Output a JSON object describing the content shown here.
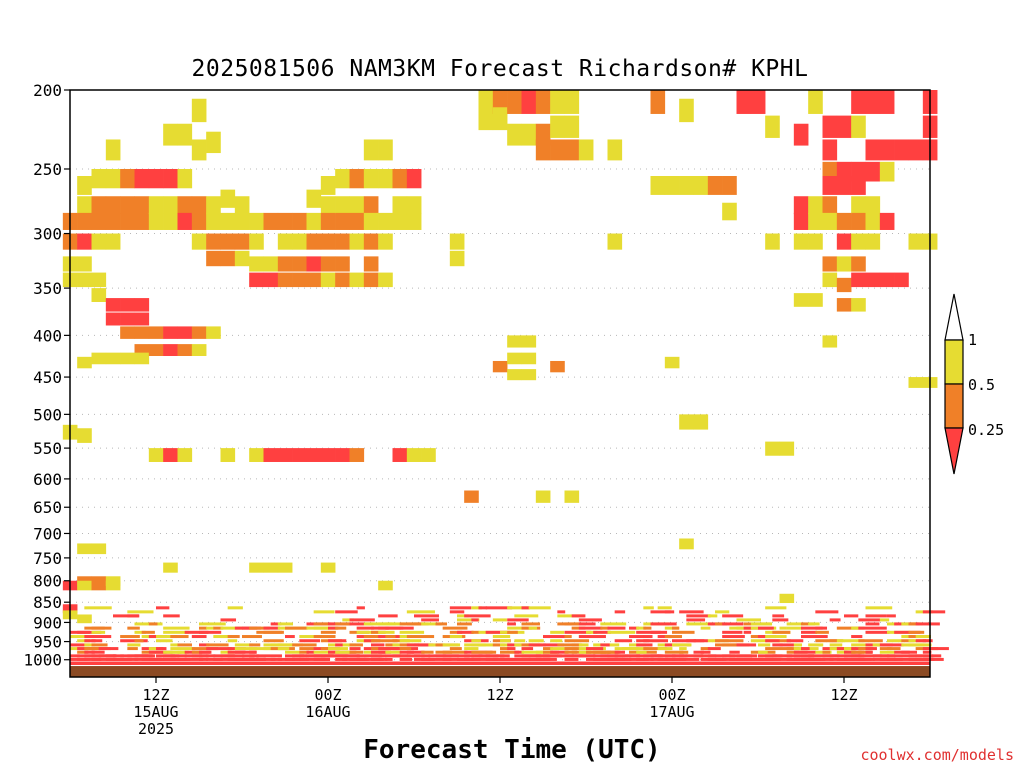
{
  "chart_data": {
    "type": "heatmap",
    "title": "2025081506 NAM3KM Forecast Richardson# KPHL",
    "xlabel": "Forecast Time (UTC)",
    "ylabel": "",
    "credit": "coolwx.com/models",
    "y_scale": "log-pressure, inverted (hPa)",
    "ylim": [
      1050,
      200
    ],
    "xlim_hours_from_init": [
      0,
      60
    ],
    "y_ticks": [
      200,
      250,
      300,
      350,
      400,
      450,
      500,
      550,
      600,
      650,
      700,
      750,
      800,
      850,
      900,
      950,
      1000
    ],
    "x_ticks": [
      {
        "hour": 6,
        "lines": [
          "12Z",
          "15AUG",
          "2025"
        ]
      },
      {
        "hour": 18,
        "lines": [
          "00Z",
          "16AUG"
        ]
      },
      {
        "hour": 30,
        "lines": [
          "12Z"
        ]
      },
      {
        "hour": 42,
        "lines": [
          "00Z",
          "17AUG"
        ]
      },
      {
        "hour": 54,
        "lines": [
          "12Z"
        ]
      }
    ],
    "grid": "dotted horizontal at pressure ticks",
    "colors": {
      "lt_0_25": "#ff4040",
      "0_25_to_0_5": "#f08028",
      "0_5_to_1": "#e6dc32",
      "ground": "#8b4a23"
    },
    "colorbar": {
      "labels": [
        "1",
        "0.5",
        "0.25"
      ]
    },
    "cells": [
      [
        0,
        283,
        2,
        2
      ],
      [
        0,
        300,
        2,
        2
      ],
      [
        0,
        320,
        2,
        3
      ],
      [
        0,
        335,
        2,
        3
      ],
      [
        0,
        515,
        2,
        3
      ],
      [
        0,
        800,
        2,
        1
      ],
      [
        0,
        855,
        2,
        1
      ],
      [
        0,
        870,
        2,
        3
      ],
      [
        1,
        255,
        3,
        3
      ],
      [
        1,
        270,
        3,
        3
      ],
      [
        1,
        283,
        3,
        2
      ],
      [
        1,
        300,
        3,
        1
      ],
      [
        1,
        320,
        3,
        3
      ],
      [
        1,
        335,
        3,
        3
      ],
      [
        1,
        425,
        3,
        3
      ],
      [
        1,
        520,
        3,
        3
      ],
      [
        1,
        720,
        3,
        3
      ],
      [
        1,
        790,
        3,
        2
      ],
      [
        1,
        800,
        3,
        3
      ],
      [
        1,
        880,
        3,
        3
      ],
      [
        2,
        250,
        3,
        3
      ],
      [
        2,
        270,
        3,
        2
      ],
      [
        2,
        283,
        3,
        2
      ],
      [
        2,
        300,
        3,
        3
      ],
      [
        2,
        335,
        3,
        3
      ],
      [
        2,
        350,
        3,
        3
      ],
      [
        2,
        420,
        3,
        3
      ],
      [
        2,
        720,
        3,
        3
      ],
      [
        2,
        790,
        3,
        2
      ],
      [
        2,
        800,
        3,
        2
      ],
      [
        3,
        230,
        3,
        3
      ],
      [
        3,
        250,
        3,
        3
      ],
      [
        3,
        270,
        3,
        2
      ],
      [
        3,
        283,
        3,
        2
      ],
      [
        3,
        300,
        3,
        3
      ],
      [
        3,
        360,
        3,
        1
      ],
      [
        3,
        375,
        3,
        1
      ],
      [
        3,
        420,
        3,
        3
      ],
      [
        3,
        790,
        3,
        3
      ],
      [
        3,
        800,
        3,
        3
      ],
      [
        4,
        250,
        3,
        2
      ],
      [
        4,
        270,
        3,
        2
      ],
      [
        4,
        283,
        3,
        2
      ],
      [
        4,
        360,
        3,
        1
      ],
      [
        4,
        375,
        3,
        1
      ],
      [
        4,
        390,
        3,
        2
      ],
      [
        4,
        420,
        3,
        3
      ],
      [
        5,
        250,
        3,
        1
      ],
      [
        5,
        270,
        3,
        2
      ],
      [
        5,
        283,
        3,
        2
      ],
      [
        5,
        360,
        3,
        1
      ],
      [
        5,
        375,
        3,
        1
      ],
      [
        5,
        390,
        3,
        2
      ],
      [
        5,
        410,
        3,
        2
      ],
      [
        5,
        420,
        3,
        3
      ],
      [
        6,
        250,
        3,
        1
      ],
      [
        6,
        270,
        3,
        3
      ],
      [
        6,
        283,
        3,
        3
      ],
      [
        6,
        390,
        3,
        2
      ],
      [
        6,
        410,
        3,
        2
      ],
      [
        6,
        550,
        3,
        3
      ],
      [
        7,
        220,
        3,
        3
      ],
      [
        7,
        250,
        3,
        1
      ],
      [
        7,
        270,
        3,
        3
      ],
      [
        7,
        283,
        3,
        3
      ],
      [
        7,
        390,
        3,
        1
      ],
      [
        7,
        410,
        3,
        1
      ],
      [
        7,
        550,
        3,
        1
      ],
      [
        7,
        760,
        3,
        3
      ],
      [
        8,
        220,
        3,
        3
      ],
      [
        8,
        250,
        3,
        3
      ],
      [
        8,
        270,
        3,
        2
      ],
      [
        8,
        283,
        3,
        1
      ],
      [
        8,
        390,
        3,
        1
      ],
      [
        8,
        410,
        3,
        2
      ],
      [
        8,
        550,
        3,
        3
      ],
      [
        9,
        205,
        3,
        3
      ],
      [
        9,
        230,
        3,
        3
      ],
      [
        9,
        270,
        3,
        2
      ],
      [
        9,
        283,
        3,
        2
      ],
      [
        9,
        300,
        3,
        3
      ],
      [
        9,
        390,
        3,
        2
      ],
      [
        9,
        410,
        3,
        3
      ],
      [
        10,
        225,
        3,
        3
      ],
      [
        10,
        270,
        3,
        3
      ],
      [
        10,
        283,
        3,
        3
      ],
      [
        10,
        300,
        3,
        2
      ],
      [
        10,
        315,
        3,
        2
      ],
      [
        10,
        390,
        3,
        3
      ],
      [
        11,
        265,
        3,
        3
      ],
      [
        11,
        283,
        3,
        3
      ],
      [
        11,
        300,
        3,
        2
      ],
      [
        11,
        315,
        3,
        2
      ],
      [
        11,
        550,
        3,
        3
      ],
      [
        12,
        270,
        3,
        3
      ],
      [
        12,
        283,
        3,
        3
      ],
      [
        12,
        300,
        3,
        2
      ],
      [
        12,
        315,
        3,
        3
      ],
      [
        13,
        283,
        3,
        3
      ],
      [
        13,
        300,
        3,
        3
      ],
      [
        13,
        320,
        3,
        3
      ],
      [
        13,
        335,
        3,
        1
      ],
      [
        13,
        550,
        3,
        3
      ],
      [
        13,
        760,
        3,
        3
      ],
      [
        14,
        283,
        3,
        2
      ],
      [
        14,
        320,
        3,
        3
      ],
      [
        14,
        335,
        3,
        1
      ],
      [
        14,
        550,
        3,
        1
      ],
      [
        14,
        760,
        3,
        3
      ],
      [
        15,
        283,
        3,
        2
      ],
      [
        15,
        300,
        3,
        3
      ],
      [
        15,
        320,
        3,
        2
      ],
      [
        15,
        335,
        3,
        2
      ],
      [
        15,
        550,
        3,
        1
      ],
      [
        15,
        760,
        3,
        3
      ],
      [
        16,
        283,
        3,
        2
      ],
      [
        16,
        300,
        3,
        3
      ],
      [
        16,
        320,
        3,
        2
      ],
      [
        16,
        335,
        3,
        2
      ],
      [
        16,
        550,
        3,
        1
      ],
      [
        17,
        265,
        3,
        3
      ],
      [
        17,
        283,
        3,
        3
      ],
      [
        17,
        300,
        3,
        2
      ],
      [
        17,
        320,
        3,
        1
      ],
      [
        17,
        335,
        3,
        2
      ],
      [
        17,
        550,
        3,
        1
      ],
      [
        18,
        255,
        3,
        3
      ],
      [
        18,
        270,
        3,
        3
      ],
      [
        18,
        283,
        3,
        2
      ],
      [
        18,
        300,
        3,
        2
      ],
      [
        18,
        320,
        3,
        2
      ],
      [
        18,
        335,
        3,
        3
      ],
      [
        18,
        550,
        3,
        1
      ],
      [
        18,
        760,
        3,
        3
      ],
      [
        19,
        250,
        3,
        3
      ],
      [
        19,
        270,
        3,
        3
      ],
      [
        19,
        283,
        3,
        2
      ],
      [
        19,
        300,
        3,
        2
      ],
      [
        19,
        320,
        3,
        2
      ],
      [
        19,
        335,
        3,
        2
      ],
      [
        19,
        550,
        3,
        1
      ],
      [
        20,
        250,
        3,
        2
      ],
      [
        20,
        270,
        3,
        3
      ],
      [
        20,
        283,
        3,
        2
      ],
      [
        20,
        300,
        3,
        3
      ],
      [
        20,
        335,
        3,
        3
      ],
      [
        20,
        550,
        3,
        2
      ],
      [
        21,
        230,
        3,
        3
      ],
      [
        21,
        250,
        3,
        3
      ],
      [
        21,
        270,
        3,
        2
      ],
      [
        21,
        283,
        3,
        3
      ],
      [
        21,
        300,
        3,
        2
      ],
      [
        21,
        320,
        3,
        2
      ],
      [
        21,
        335,
        3,
        2
      ],
      [
        22,
        230,
        3,
        3
      ],
      [
        22,
        250,
        3,
        3
      ],
      [
        22,
        283,
        3,
        3
      ],
      [
        22,
        300,
        3,
        3
      ],
      [
        22,
        335,
        3,
        3
      ],
      [
        22,
        800,
        3,
        3
      ],
      [
        23,
        250,
        3,
        2
      ],
      [
        23,
        270,
        3,
        3
      ],
      [
        23,
        283,
        3,
        3
      ],
      [
        23,
        550,
        3,
        1
      ],
      [
        24,
        250,
        3,
        1
      ],
      [
        24,
        270,
        3,
        3
      ],
      [
        24,
        283,
        3,
        3
      ],
      [
        24,
        550,
        3,
        3
      ],
      [
        25,
        550,
        3,
        3
      ],
      [
        27,
        300,
        3,
        3
      ],
      [
        27,
        315,
        3,
        3
      ],
      [
        28,
        620,
        3,
        2
      ],
      [
        29,
        200,
        3,
        3
      ],
      [
        29,
        210,
        3,
        3
      ],
      [
        30,
        200,
        3,
        2
      ],
      [
        30,
        210,
        3,
        3
      ],
      [
        30,
        430,
        3,
        2
      ],
      [
        31,
        200,
        3,
        2
      ],
      [
        31,
        220,
        3,
        3
      ],
      [
        31,
        400,
        3,
        3
      ],
      [
        31,
        420,
        3,
        3
      ],
      [
        31,
        440,
        3,
        3
      ],
      [
        32,
        200,
        3,
        1
      ],
      [
        32,
        220,
        3,
        3
      ],
      [
        32,
        400,
        3,
        3
      ],
      [
        32,
        420,
        3,
        3
      ],
      [
        32,
        440,
        3,
        3
      ],
      [
        33,
        200,
        3,
        2
      ],
      [
        33,
        220,
        3,
        2
      ],
      [
        33,
        230,
        3,
        2
      ],
      [
        33,
        620,
        3,
        3
      ],
      [
        34,
        200,
        3,
        3
      ],
      [
        34,
        215,
        3,
        3
      ],
      [
        34,
        230,
        3,
        2
      ],
      [
        34,
        430,
        3,
        2
      ],
      [
        35,
        200,
        3,
        3
      ],
      [
        35,
        215,
        3,
        3
      ],
      [
        35,
        230,
        3,
        2
      ],
      [
        35,
        620,
        3,
        3
      ],
      [
        36,
        230,
        3,
        3
      ],
      [
        38,
        230,
        3,
        3
      ],
      [
        38,
        300,
        3,
        3
      ],
      [
        41,
        200,
        3,
        2
      ],
      [
        41,
        255,
        3,
        3
      ],
      [
        42,
        255,
        3,
        3
      ],
      [
        42,
        425,
        3,
        3
      ],
      [
        43,
        205,
        3,
        3
      ],
      [
        43,
        255,
        3,
        3
      ],
      [
        43,
        500,
        3,
        3
      ],
      [
        43,
        710,
        3,
        3
      ],
      [
        44,
        255,
        3,
        3
      ],
      [
        44,
        500,
        3,
        3
      ],
      [
        45,
        255,
        3,
        2
      ],
      [
        46,
        255,
        3,
        2
      ],
      [
        46,
        275,
        3,
        3
      ],
      [
        47,
        200,
        3,
        1
      ],
      [
        48,
        200,
        3,
        1
      ],
      [
        49,
        215,
        3,
        3
      ],
      [
        49,
        300,
        3,
        3
      ],
      [
        49,
        540,
        3,
        3
      ],
      [
        50,
        540,
        3,
        3
      ],
      [
        50,
        830,
        3,
        3
      ],
      [
        51,
        220,
        3,
        1
      ],
      [
        51,
        270,
        3,
        1
      ],
      [
        51,
        283,
        3,
        1
      ],
      [
        51,
        300,
        3,
        3
      ],
      [
        51,
        355,
        3,
        3
      ],
      [
        52,
        200,
        3,
        3
      ],
      [
        52,
        270,
        3,
        3
      ],
      [
        52,
        283,
        3,
        3
      ],
      [
        52,
        300,
        3,
        3
      ],
      [
        52,
        355,
        3,
        3
      ],
      [
        53,
        215,
        3,
        1
      ],
      [
        53,
        230,
        3,
        1
      ],
      [
        53,
        245,
        3,
        2
      ],
      [
        53,
        255,
        3,
        1
      ],
      [
        53,
        270,
        3,
        2
      ],
      [
        53,
        283,
        3,
        3
      ],
      [
        53,
        320,
        3,
        2
      ],
      [
        53,
        335,
        3,
        3
      ],
      [
        53,
        400,
        3,
        3
      ],
      [
        54,
        215,
        3,
        1
      ],
      [
        54,
        245,
        3,
        1
      ],
      [
        54,
        255,
        3,
        1
      ],
      [
        54,
        283,
        3,
        2
      ],
      [
        54,
        300,
        3,
        1
      ],
      [
        54,
        320,
        3,
        3
      ],
      [
        54,
        340,
        3,
        2
      ],
      [
        54,
        360,
        3,
        2
      ],
      [
        55,
        200,
        3,
        1
      ],
      [
        55,
        215,
        3,
        3
      ],
      [
        55,
        245,
        3,
        1
      ],
      [
        55,
        255,
        3,
        1
      ],
      [
        55,
        270,
        3,
        3
      ],
      [
        55,
        283,
        3,
        2
      ],
      [
        55,
        300,
        3,
        3
      ],
      [
        55,
        320,
        3,
        2
      ],
      [
        55,
        335,
        3,
        1
      ],
      [
        55,
        360,
        3,
        3
      ],
      [
        56,
        200,
        3,
        1
      ],
      [
        56,
        230,
        3,
        1
      ],
      [
        56,
        245,
        3,
        1
      ],
      [
        56,
        270,
        3,
        3
      ],
      [
        56,
        283,
        3,
        3
      ],
      [
        56,
        300,
        3,
        3
      ],
      [
        56,
        335,
        3,
        1
      ],
      [
        57,
        200,
        3,
        1
      ],
      [
        57,
        230,
        3,
        1
      ],
      [
        57,
        245,
        3,
        3
      ],
      [
        57,
        283,
        3,
        1
      ],
      [
        57,
        335,
        3,
        1
      ],
      [
        58,
        230,
        3,
        1
      ],
      [
        58,
        335,
        3,
        1
      ],
      [
        59,
        230,
        3,
        1
      ],
      [
        59,
        300,
        3,
        3
      ],
      [
        59,
        450,
        3,
        3
      ],
      [
        60,
        200,
        3,
        1
      ],
      [
        60,
        215,
        3,
        1
      ],
      [
        60,
        230,
        3,
        1
      ],
      [
        60,
        450,
        3,
        3
      ],
      [
        60,
        300,
        3,
        3
      ]
    ],
    "boundary_layer_bands": [
      {
        "p": [
          1005,
          1015
        ],
        "value_class": 1,
        "coverage": "nearly continuous"
      },
      {
        "p": [
          985,
          1005
        ],
        "value_class": 1,
        "coverage": "frequent"
      },
      {
        "p": [
          955,
          985
        ],
        "value_class": [
          1,
          2,
          3
        ],
        "coverage": "patchy"
      },
      {
        "p": [
          900,
          955
        ],
        "value_class": [
          1,
          2,
          3
        ],
        "coverage": "scattered streaks"
      },
      {
        "p": [
          860,
          900
        ],
        "value_class": [
          1,
          3
        ],
        "coverage": "sparse"
      }
    ]
  }
}
